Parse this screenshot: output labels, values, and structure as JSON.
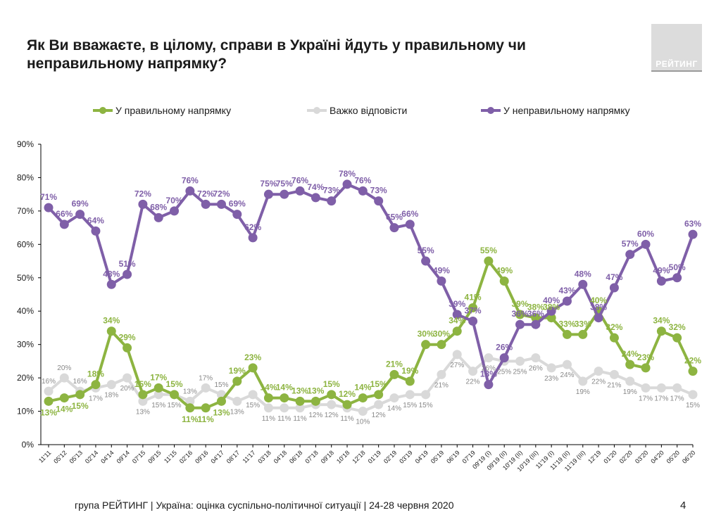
{
  "title": "Як Ви вважаєте, в цілому, справи в Україні йдуть у правильному чи неправильному напрямку?",
  "logo": "РЕЙТИНГ",
  "footer": "група РЕЙТИНГ |  Україна: оцінка суспільно-політичної  ситуації  | 24-28 червня  2020",
  "page_number": "4",
  "colors": {
    "green": "#8DB441",
    "grey": "#D9D9D9",
    "purple": "#7F5FA8"
  },
  "chart_data": {
    "type": "line",
    "title": "",
    "xlabel": "",
    "ylabel": "",
    "ylim": [
      0,
      90
    ],
    "yticks": [
      "0%",
      "10%",
      "20%",
      "30%",
      "40%",
      "50%",
      "60%",
      "70%",
      "80%",
      "90%"
    ],
    "legend_position": "top",
    "categories": [
      "11'11",
      "05'12",
      "05'13",
      "02'14",
      "04'14",
      "09'14",
      "07'15",
      "09'15",
      "11'15",
      "02'16",
      "09'16",
      "04'17",
      "08'17",
      "11'17",
      "03'18",
      "04'18",
      "06'18",
      "07'18",
      "09'18",
      "10'18",
      "12'18",
      "01'19",
      "02'19",
      "03'19",
      "04'19",
      "05'19",
      "06'19",
      "07'19",
      "09'19 (I)",
      "09'19 (II)",
      "10'19 (II)",
      "10'19 (III)",
      "11'19 (I)",
      "11'19 (II)",
      "11'19 (III)",
      "12'19",
      "01'20",
      "02'20",
      "03'20",
      "04'20",
      "05'20",
      "06'20"
    ],
    "series": [
      {
        "name": "У правильному напрямку",
        "color": "#8DB441",
        "values": [
          13,
          14,
          15,
          18,
          34,
          29,
          15,
          17,
          15,
          11,
          11,
          13,
          19,
          23,
          14,
          14,
          13,
          13,
          15,
          12,
          14,
          15,
          21,
          19,
          30,
          30,
          34,
          41,
          55,
          49,
          39,
          38,
          38,
          33,
          33,
          40,
          32,
          24,
          23,
          34,
          32,
          22
        ],
        "labels": [
          "13%",
          "14%",
          "15%",
          "18%",
          "34%",
          "29%",
          "15%",
          "17%",
          "15%",
          "11%",
          "11%",
          "13%",
          "19%",
          "23%",
          "14%",
          "14%",
          "13%",
          "13%",
          "15%",
          "12%",
          "14%",
          "15%",
          "21%",
          "19%",
          "30%",
          "30%",
          "34%",
          "41%",
          "55%",
          "49%",
          "39%",
          "38%",
          "38%",
          "33%",
          "33%",
          "40%",
          "32%",
          "24%",
          "23%",
          "34%",
          "32%",
          "22%"
        ]
      },
      {
        "name": "Важко відповісти",
        "color": "#D9D9D9",
        "values": [
          16,
          20,
          16,
          17,
          18,
          20,
          13,
          15,
          15,
          13,
          17,
          15,
          13,
          15,
          11,
          11,
          11,
          12,
          12,
          11,
          10,
          12,
          14,
          15,
          15,
          21,
          27,
          22,
          26,
          25,
          25,
          26,
          23,
          24,
          19,
          22,
          21,
          19,
          17,
          17,
          17,
          15
        ],
        "labels": [
          "16%",
          "20%",
          "16%",
          "17%",
          "18%",
          "20%",
          "13%",
          "15%",
          "15%",
          "13%",
          "17%",
          "15%",
          "13%",
          "15%",
          "11%",
          "11%",
          "11%",
          "12%",
          "12%",
          "11%",
          "10%",
          "12%",
          "14%",
          "15%",
          "15%",
          "21%",
          "27%",
          "22%",
          "26%",
          "25%",
          "25%",
          "26%",
          "23%",
          "24%",
          "19%",
          "22%",
          "21%",
          "19%",
          "17%",
          "17%",
          "17%",
          "15%"
        ]
      },
      {
        "name": "У неправильному напрямку",
        "color": "#7F5FA8",
        "values": [
          71,
          66,
          69,
          64,
          48,
          51,
          72,
          68,
          70,
          76,
          72,
          72,
          69,
          62,
          75,
          75,
          76,
          74,
          73,
          78,
          76,
          73,
          65,
          66,
          55,
          49,
          39,
          37,
          18,
          26,
          36,
          36,
          40,
          43,
          48,
          38,
          47,
          57,
          60,
          49,
          50,
          63
        ],
        "labels": [
          "71%",
          "66%",
          "69%",
          "64%",
          "48%",
          "51%",
          "72%",
          "68%",
          "70%",
          "76%",
          "72%",
          "72%",
          "69%",
          "62%",
          "75%",
          "75%",
          "76%",
          "74%",
          "73%",
          "78%",
          "76%",
          "73%",
          "65%",
          "66%",
          "55%",
          "49%",
          "39%",
          "37%",
          "18%",
          "26%",
          "36%",
          "36%",
          "40%",
          "43%",
          "48%",
          "38%",
          "47%",
          "57%",
          "60%",
          "49%",
          "50%",
          "63%"
        ]
      }
    ]
  }
}
